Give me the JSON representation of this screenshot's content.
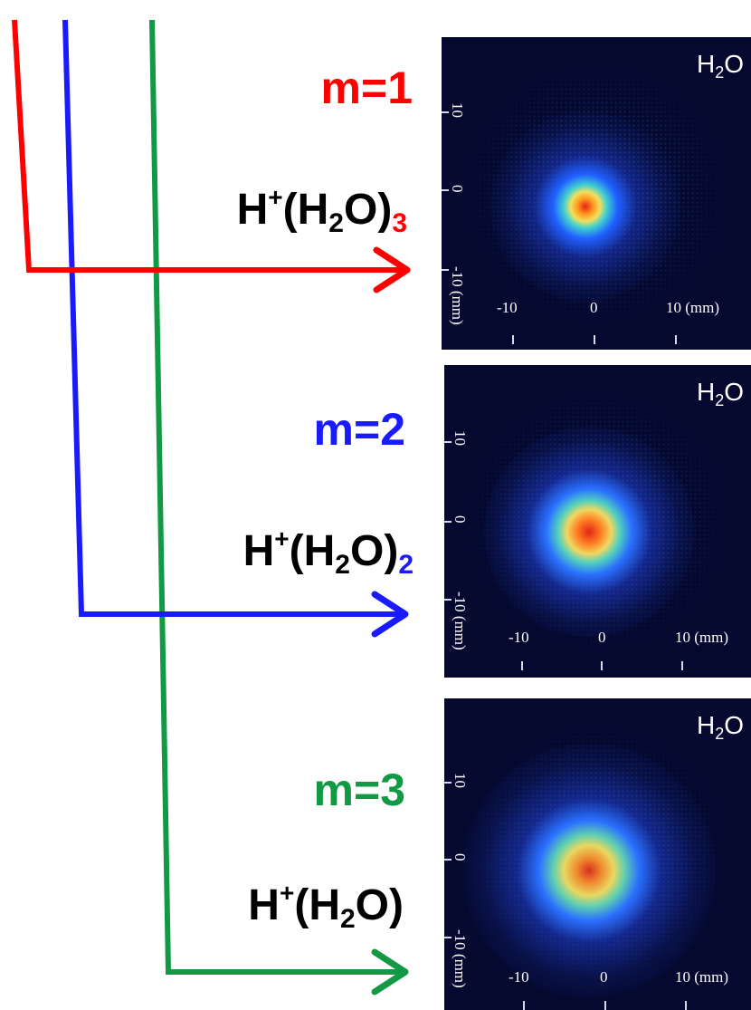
{
  "colors": {
    "m1": "#ff0000",
    "m2": "#1a1aff",
    "m3": "#119944",
    "panel_bg": "#050930"
  },
  "rows": [
    {
      "m_label": "m=1",
      "formula": {
        "h": "H",
        "sup": "+",
        "open": "(H",
        "sub": "2",
        "close": "O)",
        "n": "3"
      },
      "image": {
        "title_main": "H",
        "title_sub": "2",
        "title_end": "O",
        "y_ticks": [
          "10",
          "0",
          "-10 (mm)"
        ],
        "x_ticks": [
          "-10",
          "0",
          "10 (mm)"
        ]
      }
    },
    {
      "m_label": "m=2",
      "formula": {
        "h": "H",
        "sup": "+",
        "open": "(H",
        "sub": "2",
        "close": "O)",
        "n": "2"
      },
      "image": {
        "title_main": "H",
        "title_sub": "2",
        "title_end": "O",
        "y_ticks": [
          "10",
          "0",
          "-10 (mm)"
        ],
        "x_ticks": [
          "-10",
          "0",
          "10 (mm)"
        ]
      }
    },
    {
      "m_label": "m=3",
      "formula": {
        "h": "H",
        "sup": "+",
        "open": "(H",
        "sub": "2",
        "close": "O)",
        "n": ""
      },
      "image": {
        "title_main": "H",
        "title_sub": "2",
        "title_end": "O",
        "y_ticks": [
          "10",
          "0",
          "-10 (mm)"
        ],
        "x_ticks": [
          "-10",
          "0",
          "10 (mm)"
        ]
      }
    }
  ]
}
